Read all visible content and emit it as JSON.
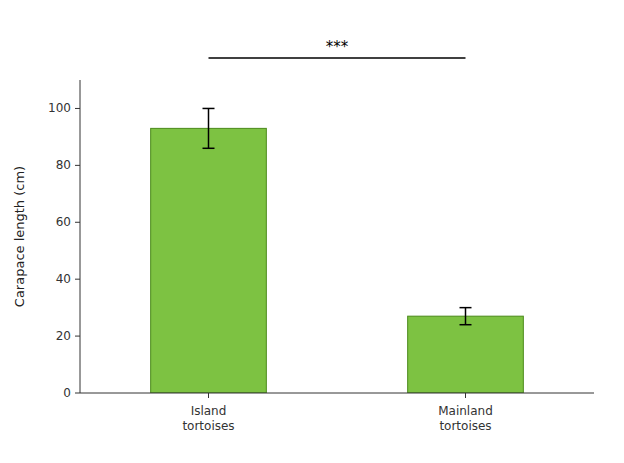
{
  "chart_data": {
    "type": "bar",
    "categories": [
      "Island\ntortoises",
      "Mainland\ntortoises"
    ],
    "values": [
      93,
      27
    ],
    "errors": [
      7,
      3
    ],
    "color": "#7DC242",
    "ylabel": "Carapace length (cm)",
    "ylim": [
      0,
      110
    ],
    "yticks": [
      0,
      20,
      40,
      60,
      80,
      100
    ],
    "annotation": "***",
    "grid": false
  }
}
